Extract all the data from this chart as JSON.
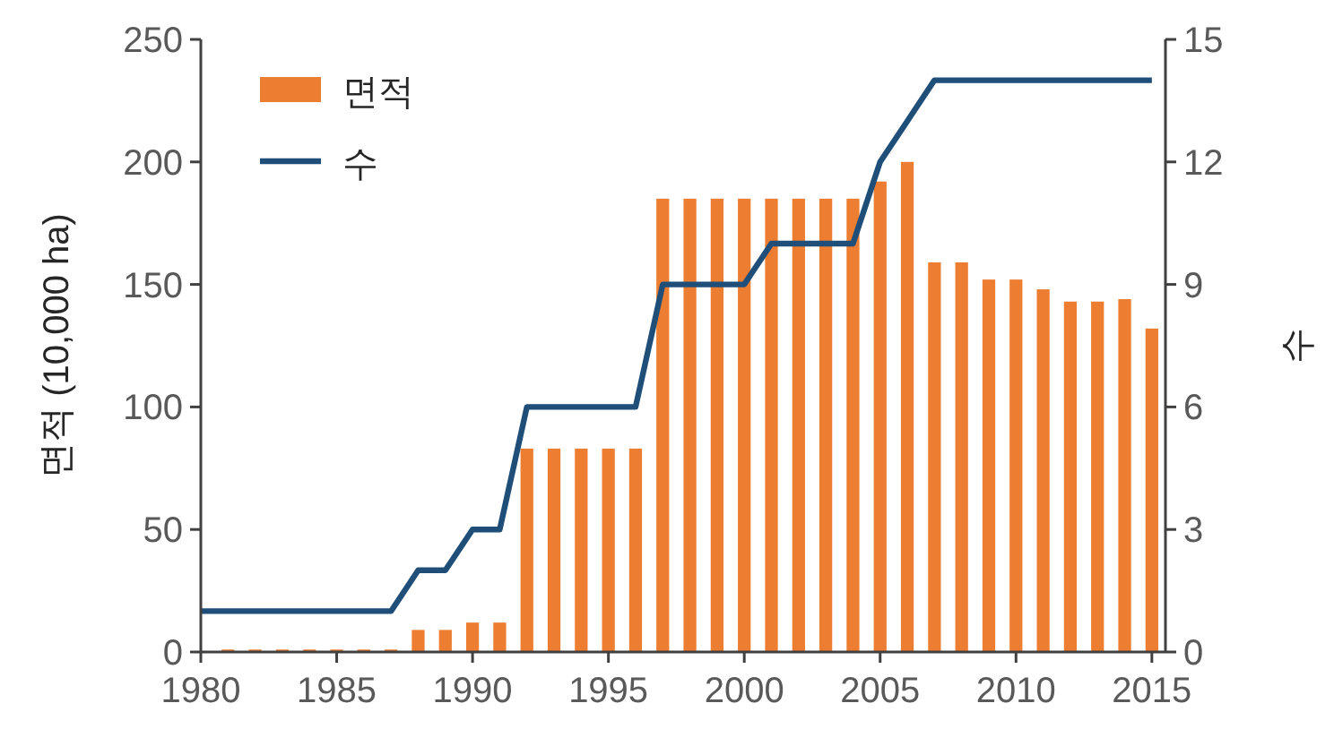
{
  "chart_data": {
    "type": "bar",
    "x": [
      1980,
      1981,
      1982,
      1983,
      1984,
      1985,
      1986,
      1987,
      1988,
      1989,
      1990,
      1991,
      1992,
      1993,
      1994,
      1995,
      1996,
      1997,
      1998,
      1999,
      2000,
      2001,
      2002,
      2003,
      2004,
      2005,
      2006,
      2007,
      2008,
      2009,
      2010,
      2011,
      2012,
      2013,
      2014,
      2015
    ],
    "series": [
      {
        "name": "면적",
        "color": "#ed7d31",
        "values": [
          null,
          1,
          1,
          1,
          1,
          1,
          1,
          1,
          9,
          9,
          12,
          12,
          83,
          83,
          83,
          83,
          83,
          185,
          185,
          185,
          185,
          185,
          185,
          185,
          185,
          192,
          200,
          159,
          159,
          152,
          152,
          148,
          143,
          143,
          144,
          132
        ]
      },
      {
        "name": "수",
        "type": "line",
        "axis": "y2",
        "color": "#1f4e79",
        "values": [
          1,
          1,
          1,
          1,
          1,
          1,
          1,
          1,
          2,
          2,
          3,
          3,
          6,
          6,
          6,
          6,
          6,
          9,
          9,
          9,
          9,
          10,
          10,
          10,
          10,
          12,
          13,
          14,
          14,
          14,
          14,
          14,
          14,
          14,
          14,
          14
        ]
      }
    ],
    "ylabel": "면적 (10,000 ha)",
    "y2label": "수",
    "xlim": [
      1980,
      2015.5
    ],
    "xticks": [
      1980,
      1985,
      1990,
      1995,
      2000,
      2005,
      2010,
      2015
    ],
    "ylim": [
      0,
      250
    ],
    "yticks": [
      0,
      50,
      100,
      150,
      200,
      250
    ],
    "y2lim": [
      0,
      15
    ],
    "y2ticks": [
      0,
      3,
      6,
      9,
      12,
      15
    ],
    "legend": "top left"
  }
}
